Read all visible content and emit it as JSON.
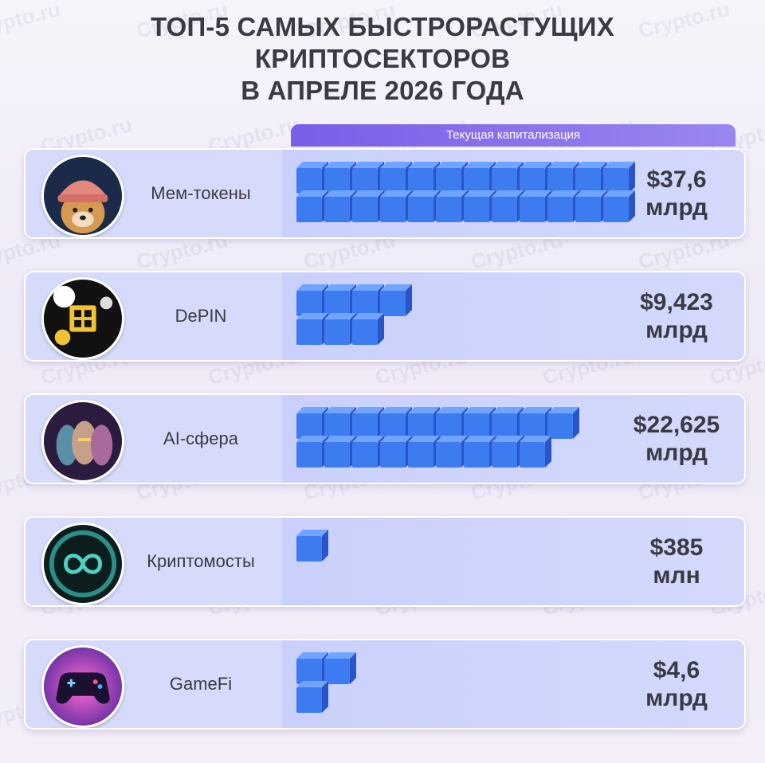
{
  "title_lines": [
    "ТОП-5 САМЫХ БЫСТРОРАСТУЩИХ",
    "КРИПТОСЕКТОРОВ",
    "В АПРЕЛЕ 2026 ГОДА"
  ],
  "column_header": "Текущая капитализация",
  "watermark": "Crypto.ru",
  "colors": {
    "cube_front": "#3d7cf0",
    "cube_top": "#6fa5ff",
    "cube_side": "#2a55c9",
    "header": "#7a5de8"
  },
  "rows": [
    {
      "label": "Мем-токены",
      "value_line1": "$37,6",
      "value_line2": "млрд",
      "icon": "wif-dog-hat-icon"
    },
    {
      "label": "DePIN",
      "value_line1": "$9,423",
      "value_line2": "млрд",
      "icon": "depin-chip-icon"
    },
    {
      "label": "AI-сфера",
      "value_line1": "$22,625",
      "value_line2": "млрд",
      "icon": "ai-faces-icon"
    },
    {
      "label": "Криптомосты",
      "value_line1": "$385",
      "value_line2": "млн",
      "icon": "bridge-infinity-icon"
    },
    {
      "label": "GameFi",
      "value_line1": "$4,6",
      "value_line2": "млрд",
      "icon": "gamepad-icon"
    }
  ],
  "chart_data": {
    "type": "bar",
    "orientation": "horizontal",
    "title": "ТОП-5 САМЫХ БЫСТРОРАСТУЩИХ КРИПТОСЕКТОРОВ В АПРЕЛЕ 2026 ГОДА",
    "categories": [
      "Мем-токены",
      "DePIN",
      "AI-сфера",
      "Криптомосты",
      "GameFi"
    ],
    "values": [
      37.6,
      9.423,
      22.625,
      0.385,
      4.6
    ],
    "unit": "USD, billions",
    "value_labels": [
      "$37,6 млрд",
      "$9,423 млрд",
      "$22,625 млрд",
      "$385 млн",
      "$4,6 млрд"
    ],
    "cube_counts": [
      24,
      7,
      19,
      1,
      3
    ]
  }
}
